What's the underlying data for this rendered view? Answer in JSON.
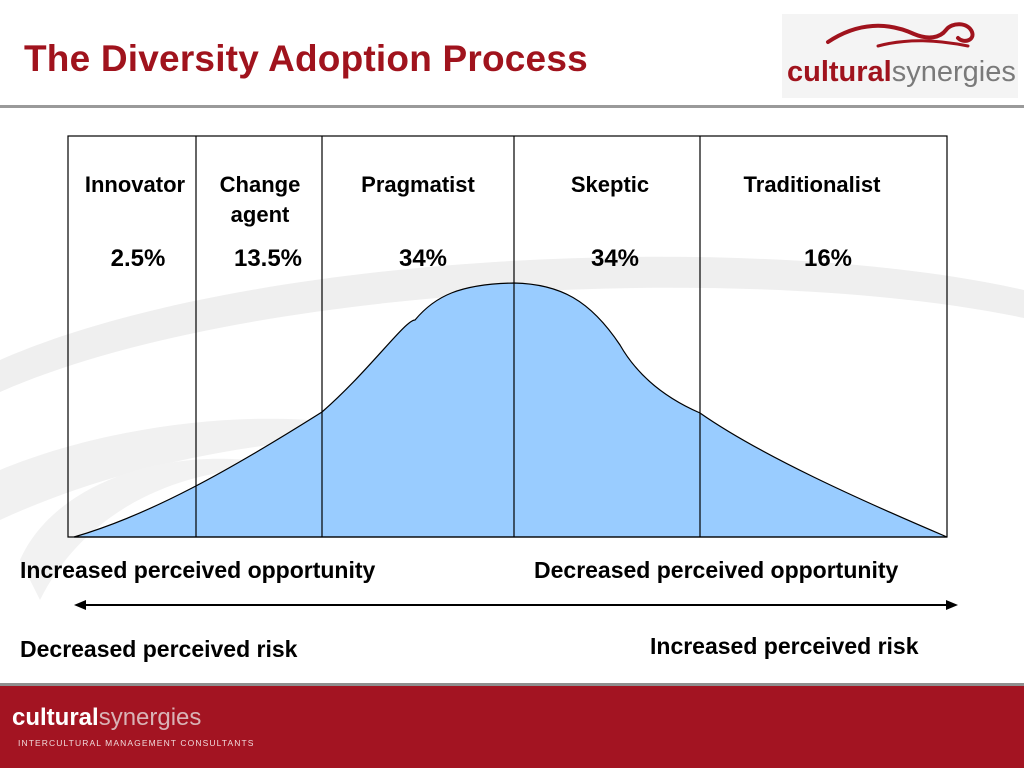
{
  "title": "The Diversity Adoption Process",
  "logo": {
    "brand_strong": "cultural",
    "brand_light": "synergies",
    "tagline": "INTERCULTURAL MANAGEMENT CONSULTANTS"
  },
  "diagram": {
    "segments": [
      {
        "label": [
          "Innovator"
        ],
        "percent": "2.5%"
      },
      {
        "label": [
          "Change",
          "agent"
        ],
        "percent": "13.5%"
      },
      {
        "label": [
          "Pragmatist"
        ],
        "percent": "34%"
      },
      {
        "label": [
          "Skeptic"
        ],
        "percent": "34%"
      },
      {
        "label": [
          "Traditionalist"
        ],
        "percent": "16%"
      }
    ],
    "curve_fill": "#99ccff"
  },
  "captions": {
    "left_top": "Increased perceived opportunity",
    "right_top": "Decreased perceived opportunity",
    "left_bottom": "Decreased perceived risk",
    "right_bottom": "Increased perceived risk"
  },
  "colors": {
    "brand_red": "#a0131d",
    "footer_red": "#a31422",
    "rule_gray": "#9a9a9a"
  }
}
